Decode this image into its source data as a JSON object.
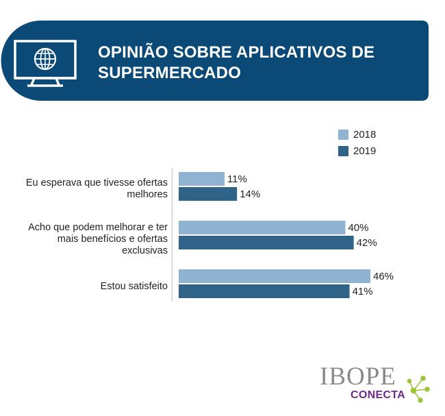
{
  "header": {
    "title": "OPINIÃO SOBRE APLICATIVOS DE SUPERMERCADO",
    "icon": "monitor-globe-icon"
  },
  "colors": {
    "banner": "#0b4a76",
    "series_2018": "#8fb3d1",
    "series_2019": "#2f6388",
    "logo_gray": "#8a8a8a",
    "logo_purple": "#6e2a8a",
    "logo_green": "#9cc43b"
  },
  "chart_data": {
    "type": "bar",
    "orientation": "horizontal",
    "categories": [
      "Eu esperava que tivesse ofertas melhores",
      "Acho que podem melhorar e ter mais benefícios e ofertas exclusivas",
      "Estou satisfeito"
    ],
    "series": [
      {
        "name": "2018",
        "values": [
          11,
          40,
          46
        ],
        "labels": [
          "11%",
          "40%",
          "46%"
        ]
      },
      {
        "name": "2019",
        "values": [
          14,
          42,
          41
        ],
        "labels": [
          "14%",
          "42%",
          "41%"
        ]
      }
    ],
    "legend_position": "top-right",
    "grid": false
  },
  "logo": {
    "brand": "IBOPE",
    "sub": "CONECTA"
  }
}
